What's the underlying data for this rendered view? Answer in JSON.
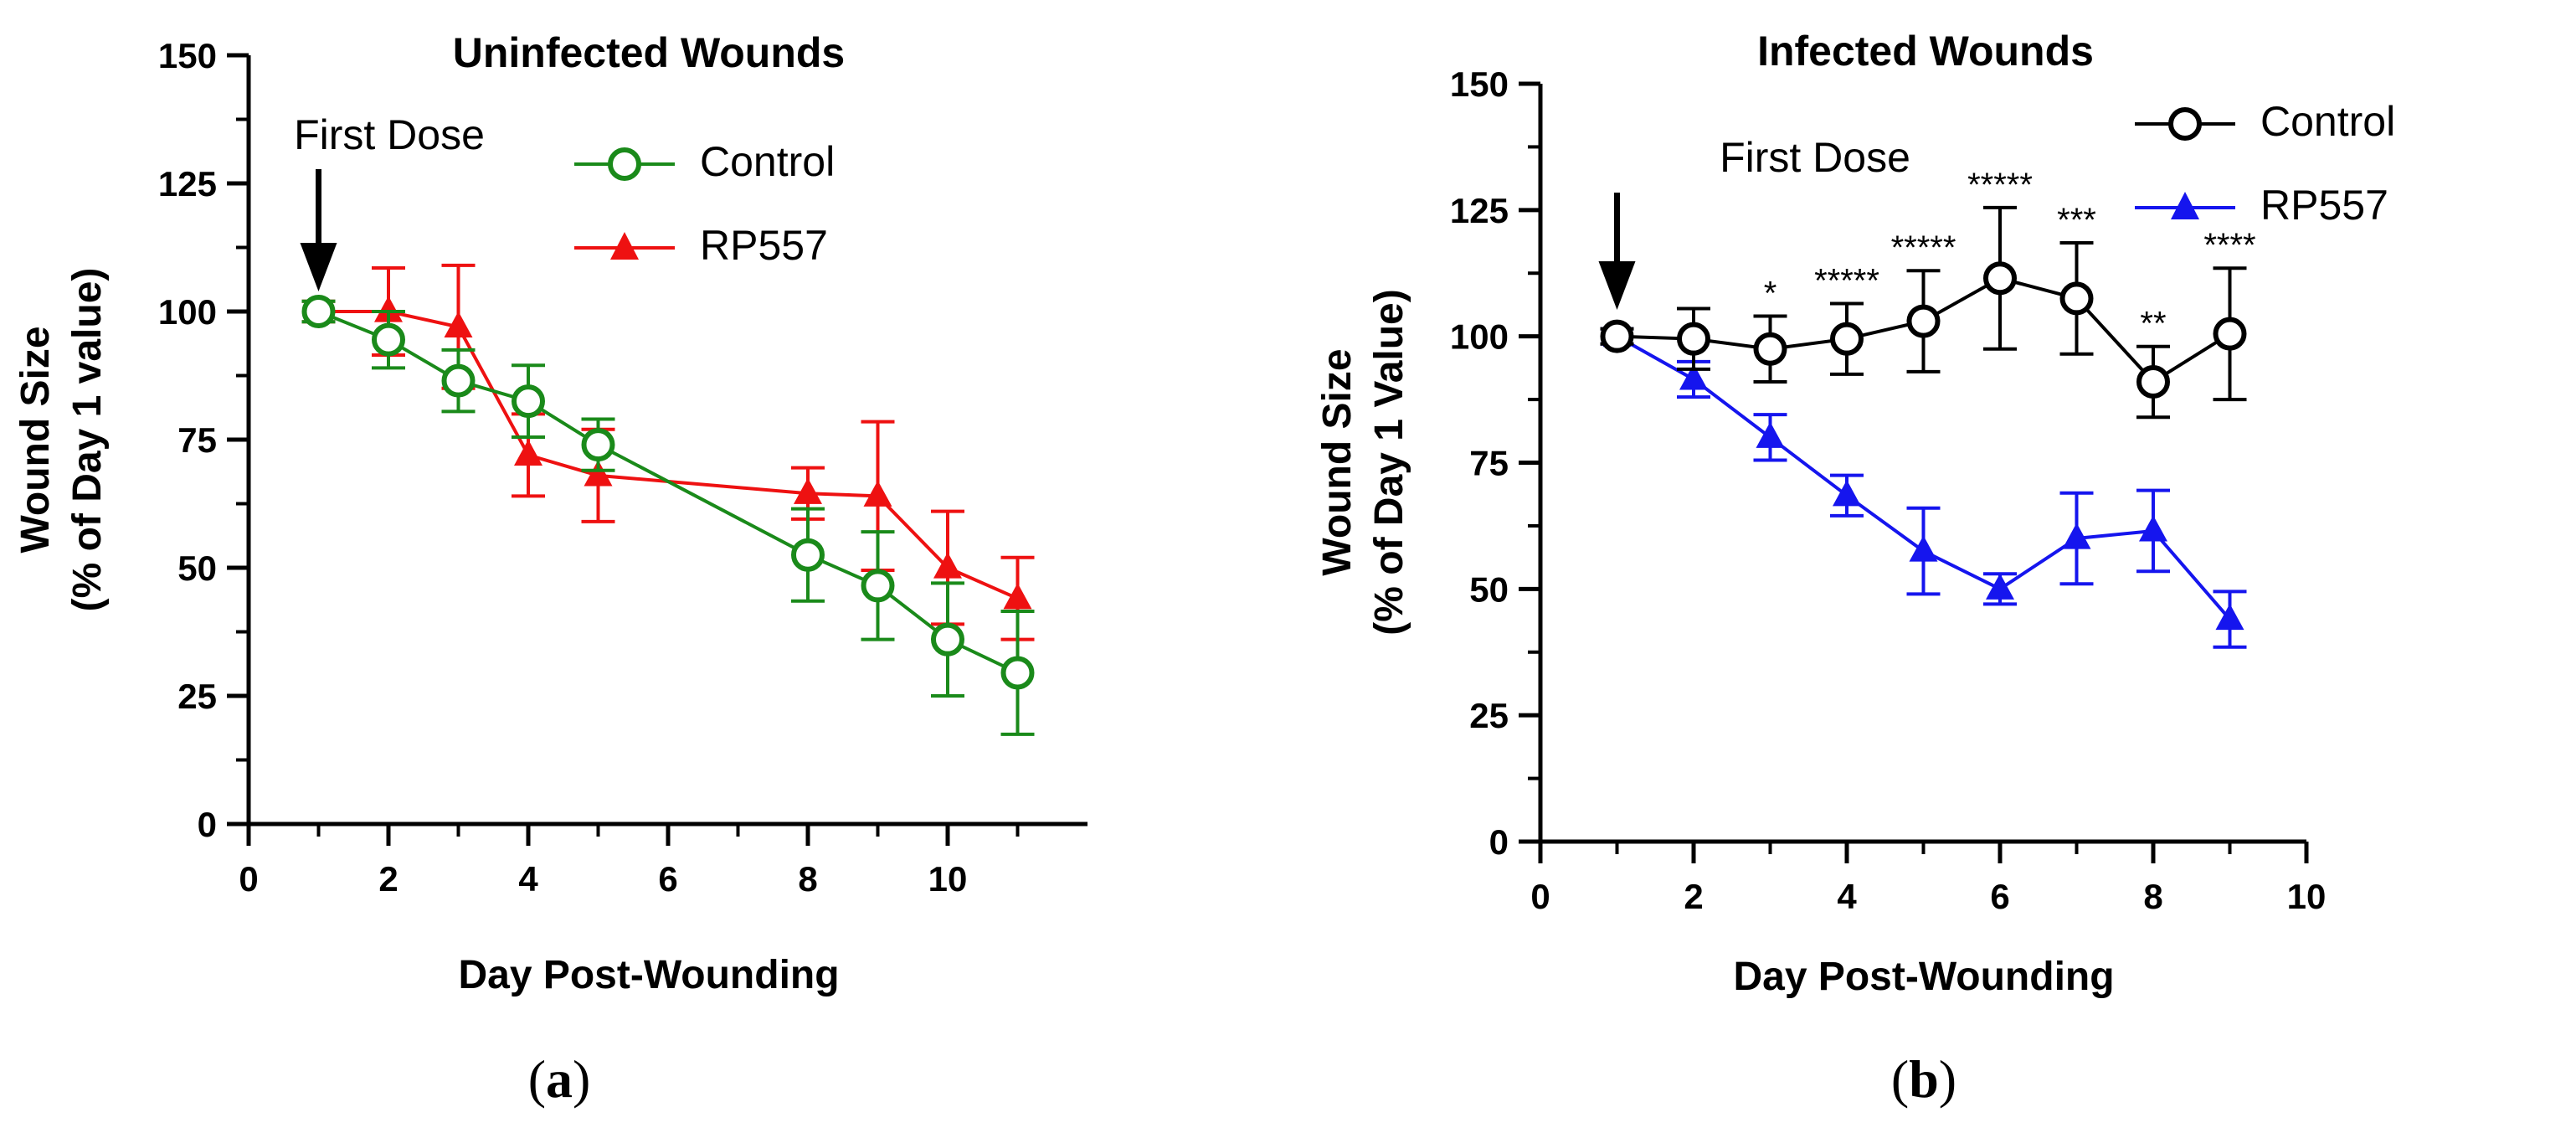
{
  "chart_data": [
    {
      "type": "line",
      "panel_label": "a",
      "title": "Uninfected Wounds",
      "xlabel": "Day Post-Wounding",
      "ylabel": [
        "Wound Size",
        "(% of Day 1 value)"
      ],
      "xlim": [
        0,
        12
      ],
      "ylim": [
        0,
        150
      ],
      "xticks": [
        0,
        2,
        4,
        6,
        8,
        10
      ],
      "yticks": [
        0,
        25,
        50,
        75,
        100,
        125,
        150
      ],
      "legend_position": "top-right",
      "annotation": {
        "text": "First Dose",
        "x": 1,
        "y": 100
      },
      "series": [
        {
          "name": "Control",
          "color": "#1a8a1a",
          "marker": "open-circle",
          "x": [
            1,
            2,
            3,
            4,
            5,
            8,
            9,
            10,
            11
          ],
          "y": [
            100,
            94.5,
            86.5,
            82.5,
            74,
            52.5,
            46.5,
            36,
            29.5
          ],
          "err": [
            2,
            5.5,
            6,
            7,
            5,
            9,
            10.5,
            11,
            12
          ]
        },
        {
          "name": "RP557",
          "color": "#ee1111",
          "marker": "filled-triangle",
          "x": [
            1,
            2,
            3,
            4,
            5,
            8,
            9,
            10,
            11
          ],
          "y": [
            100,
            100,
            97,
            72,
            68,
            64.5,
            64,
            50,
            44
          ],
          "err": [
            2,
            8.5,
            12,
            8,
            9,
            5,
            14.5,
            11,
            8
          ]
        }
      ]
    },
    {
      "type": "line",
      "panel_label": "b",
      "title": "Infected Wounds",
      "xlabel": "Day Post-Wounding",
      "ylabel": [
        "Wound Size",
        "(% of Day 1 Value)"
      ],
      "xlim": [
        0,
        10
      ],
      "ylim": [
        0,
        150
      ],
      "xticks": [
        0,
        2,
        4,
        6,
        8,
        10
      ],
      "yticks": [
        0,
        25,
        50,
        75,
        100,
        125,
        150
      ],
      "legend_position": "top-right",
      "annotation": {
        "text": "First Dose",
        "x": 1,
        "y": 100
      },
      "significance": [
        {
          "x": 3,
          "label": "*"
        },
        {
          "x": 4,
          "label": "*****"
        },
        {
          "x": 5,
          "label": "*****"
        },
        {
          "x": 6,
          "label": "*****"
        },
        {
          "x": 7,
          "label": "***"
        },
        {
          "x": 8,
          "label": "**"
        },
        {
          "x": 9,
          "label": "****"
        }
      ],
      "series": [
        {
          "name": "Control",
          "color": "#000000",
          "marker": "open-circle",
          "x": [
            1,
            2,
            3,
            4,
            5,
            6,
            7,
            8,
            9
          ],
          "y": [
            100,
            99.5,
            97.5,
            99.5,
            103,
            111.5,
            107.5,
            91,
            100.5
          ],
          "err": [
            1.5,
            6,
            6.5,
            7,
            10,
            14,
            11,
            7,
            13
          ]
        },
        {
          "name": "RP557",
          "color": "#1515ee",
          "marker": "filled-triangle",
          "x": [
            1,
            2,
            3,
            4,
            5,
            6,
            7,
            8,
            9
          ],
          "y": [
            100,
            91.5,
            80,
            68.5,
            57.5,
            50,
            60,
            61.5,
            44
          ],
          "err": [
            1.5,
            3.5,
            4.5,
            4,
            8.5,
            3,
            9,
            8,
            5.5
          ]
        }
      ]
    }
  ]
}
